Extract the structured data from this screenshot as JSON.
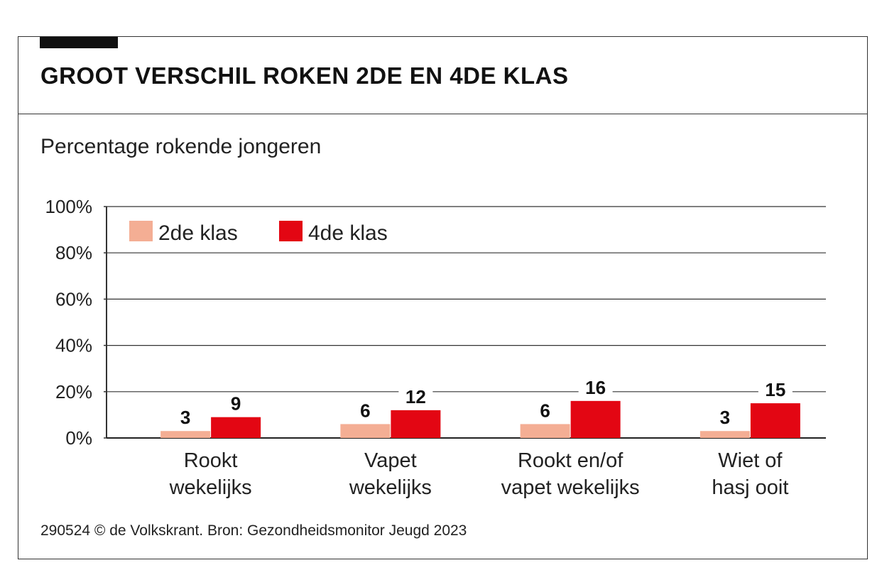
{
  "title": "GROOT VERSCHIL ROKEN 2DE EN 4DE KLAS",
  "subtitle": "Percentage rokende jongeren",
  "source": "290524 © de Volkskrant. Bron: Gezondheidsmonitor Jeugd 2023",
  "colors": {
    "klas2": "#f4ae94",
    "klas4": "#e30613"
  },
  "chart_data": {
    "type": "bar",
    "categories": [
      [
        "Rookt",
        "wekelijks"
      ],
      [
        "Vapet",
        "wekelijks"
      ],
      [
        "Rookt en/of",
        "vapet wekelijks"
      ],
      [
        "Wiet of",
        "hasj ooit"
      ]
    ],
    "series": [
      {
        "name": "2de klas",
        "values": [
          3,
          6,
          6,
          3
        ]
      },
      {
        "name": "4de klas",
        "values": [
          9,
          12,
          16,
          15
        ]
      }
    ],
    "ylim": [
      0,
      100
    ],
    "yticks": [
      "0%",
      "20%",
      "40%",
      "60%",
      "80%",
      "100%"
    ],
    "ytick_values": [
      0,
      20,
      40,
      60,
      80,
      100
    ],
    "grid": true,
    "legend": "top-left"
  }
}
